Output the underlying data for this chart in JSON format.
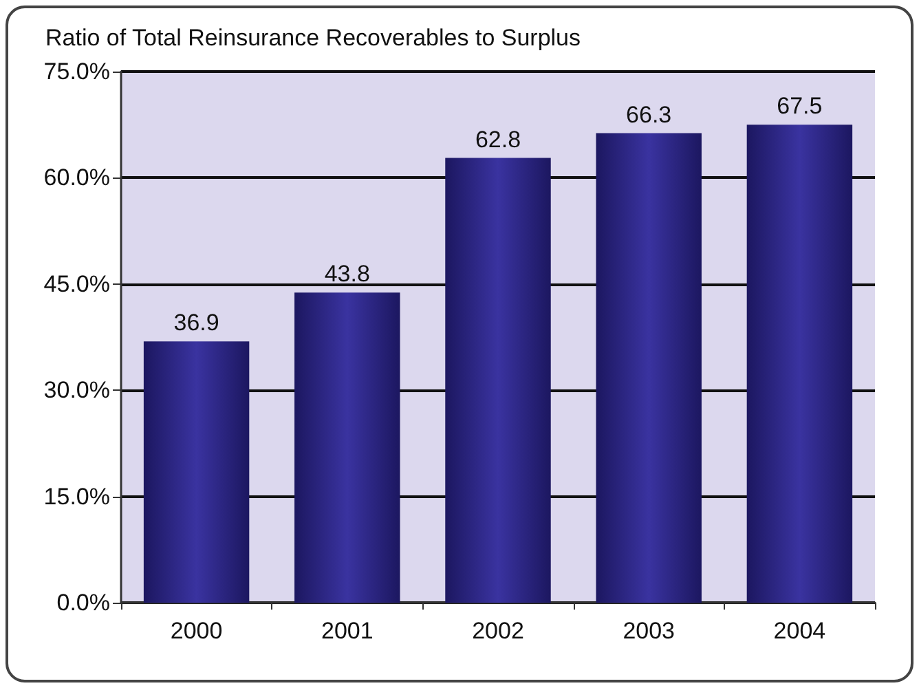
{
  "chart_data": {
    "type": "bar",
    "title": "Ratio of Total Reinsurance Recoverables to Surplus",
    "categories": [
      "2000",
      "2001",
      "2002",
      "2003",
      "2004"
    ],
    "values": [
      36.9,
      43.8,
      62.8,
      66.3,
      67.5
    ],
    "color": "#1c1760",
    "data_labels": true,
    "ylim": [
      0,
      75
    ],
    "yticks": [
      {
        "value": 0,
        "label": "0.0%"
      },
      {
        "value": 15,
        "label": "15.0%"
      },
      {
        "value": 30,
        "label": "30.0%"
      },
      {
        "value": 45,
        "label": "45.0%"
      },
      {
        "value": 60,
        "label": "60.0%"
      },
      {
        "value": 75,
        "label": "75.0%"
      }
    ],
    "grid": "y"
  }
}
